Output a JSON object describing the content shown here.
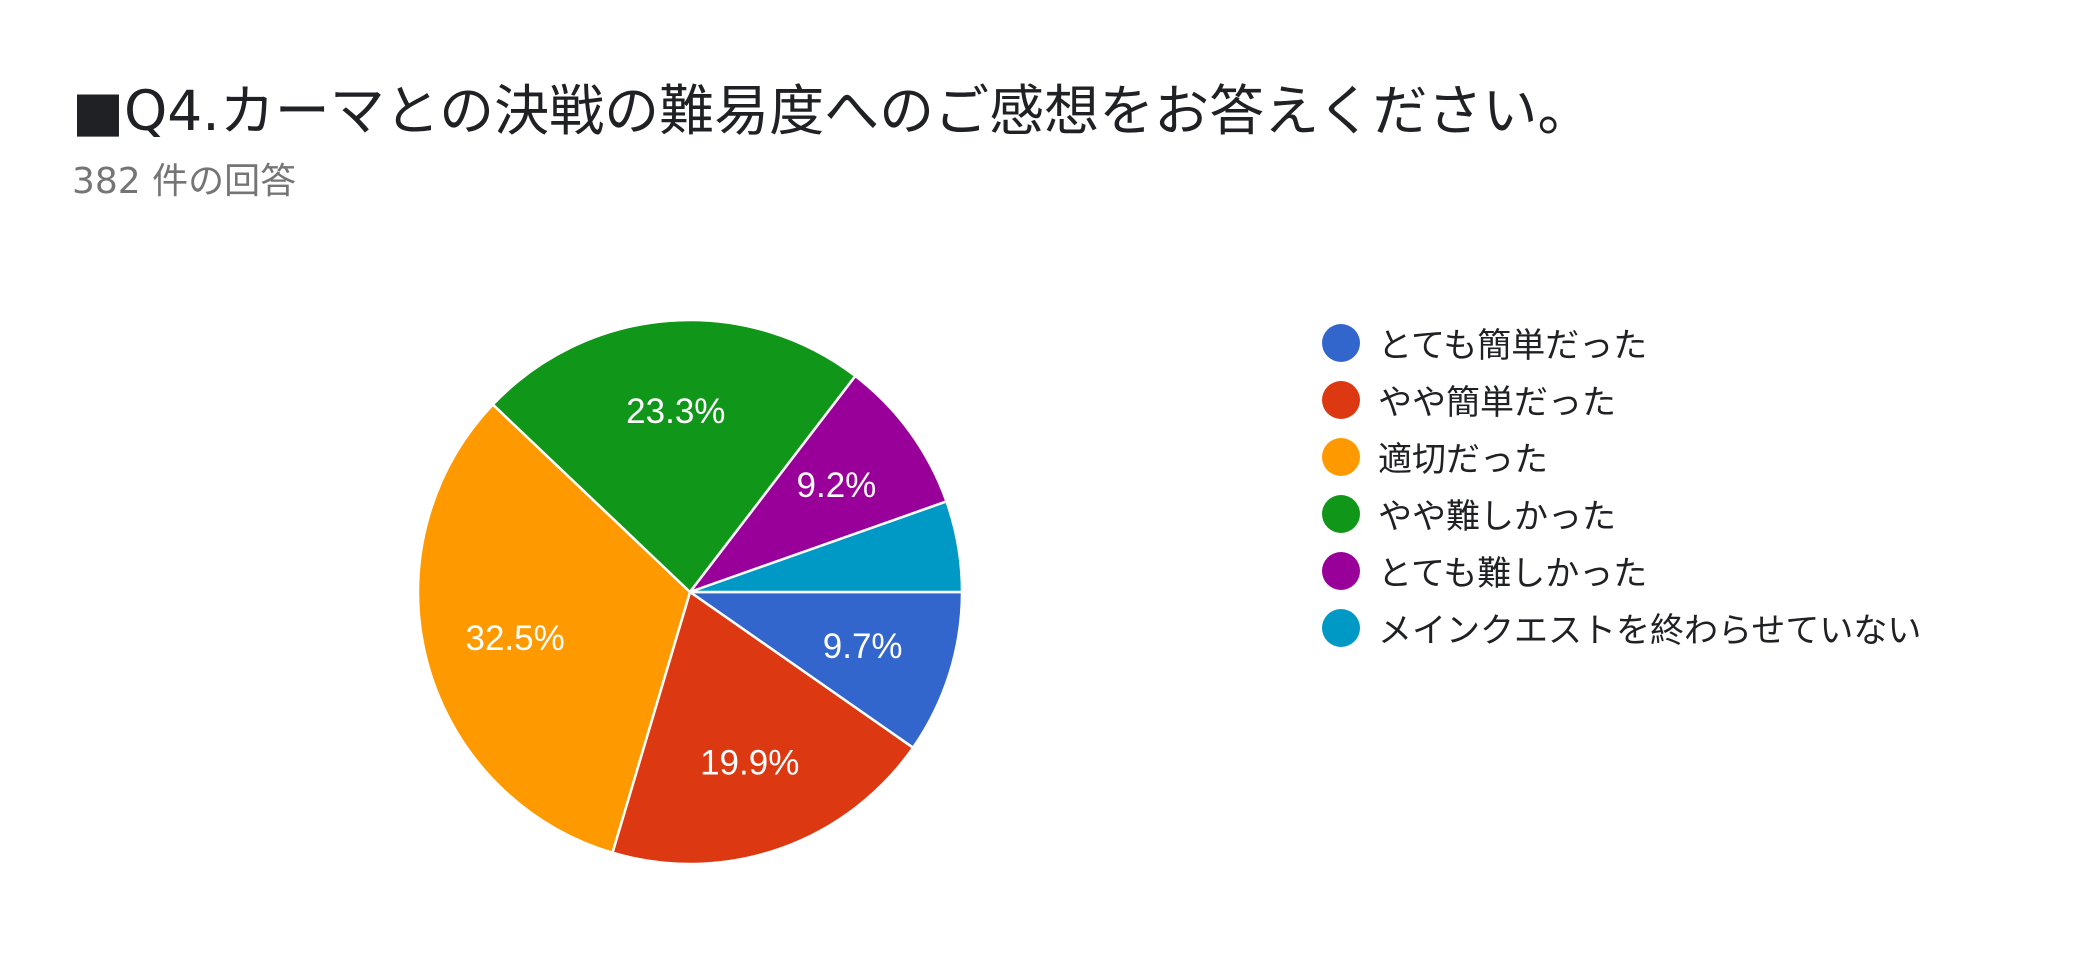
{
  "header": {
    "title": "■Q4.カーマとの決戦の難易度へのご感想をお答えください。",
    "response_count": "382 件の回答"
  },
  "chart_data": {
    "type": "pie",
    "title": "■Q4.カーマとの決戦の難易度へのご感想をお答えください。",
    "subtitle": "382 件の回答",
    "start": "3 o'clock, clockwise",
    "legend_position": "right",
    "slices": [
      {
        "label": "とても簡単だった",
        "value": 9.7,
        "display": "9.7%",
        "color": "#3366cc"
      },
      {
        "label": "やや簡単だった",
        "value": 19.9,
        "display": "19.9%",
        "color": "#dc3912"
      },
      {
        "label": "適切だった",
        "value": 32.5,
        "display": "32.5%",
        "color": "#ff9900"
      },
      {
        "label": "やや難しかった",
        "value": 23.3,
        "display": "23.3%",
        "color": "#109618"
      },
      {
        "label": "とても難しかった",
        "value": 9.2,
        "display": "9.2%",
        "color": "#990099"
      },
      {
        "label": "メインクエストを終わらせていない",
        "value": 5.4,
        "display": "",
        "color": "#0099c6"
      }
    ]
  }
}
